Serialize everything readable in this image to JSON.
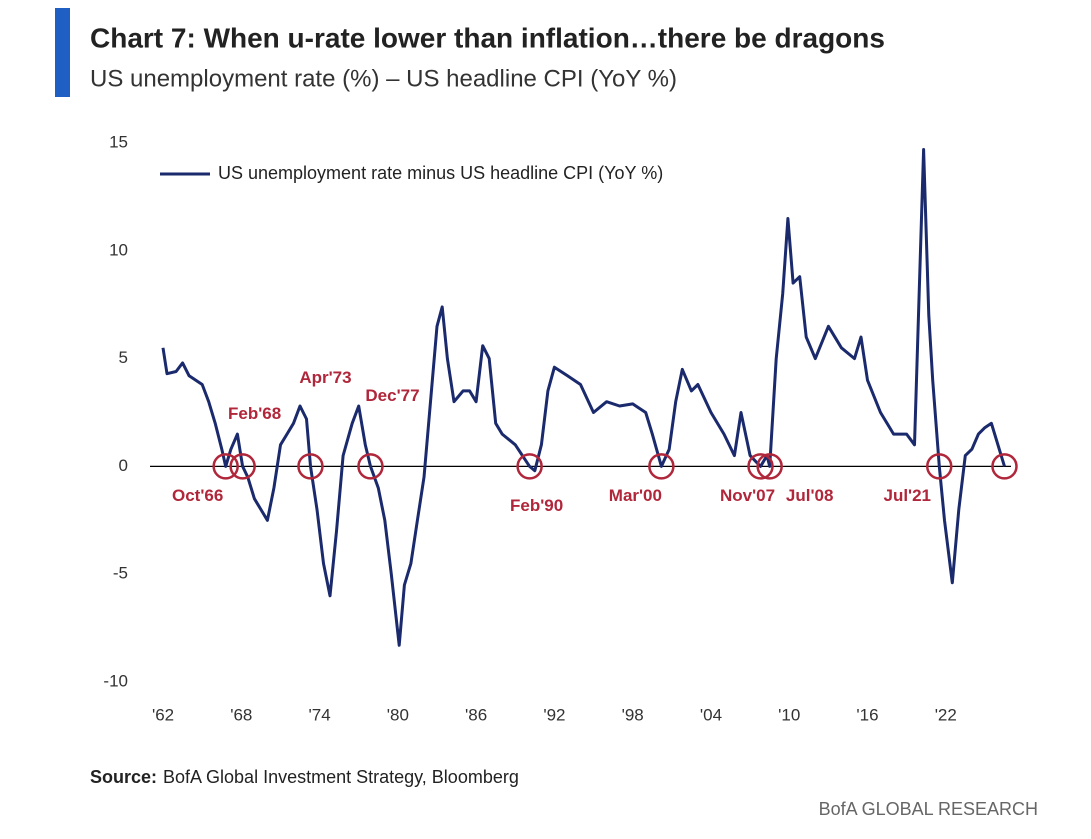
{
  "chart_data": {
    "type": "line",
    "title": "Chart 7: When u-rate lower than inflation…there be dragons",
    "subtitle": "US unemployment rate (%) – US headline CPI (YoY %)",
    "source_label": "Source:",
    "source": "BofA Global Investment Strategy, Bloomberg",
    "brand": "BofA GLOBAL RESEARCH",
    "xlim": [
      1961,
      2027
    ],
    "xticks": [
      {
        "value": 1962,
        "label": "'62"
      },
      {
        "value": 1968,
        "label": "'68"
      },
      {
        "value": 1974,
        "label": "'74"
      },
      {
        "value": 1980,
        "label": "'80"
      },
      {
        "value": 1986,
        "label": "'86"
      },
      {
        "value": 1992,
        "label": "'92"
      },
      {
        "value": 1998,
        "label": "'98"
      },
      {
        "value": 2004,
        "label": "'04"
      },
      {
        "value": 2010,
        "label": "'10"
      },
      {
        "value": 2016,
        "label": "'16"
      },
      {
        "value": 2022,
        "label": "'22"
      }
    ],
    "ylim": [
      -10,
      15
    ],
    "yticks": [
      -10,
      -5,
      0,
      5,
      10,
      15
    ],
    "zero_line": true,
    "legend": "top-left",
    "x": [
      1962.0,
      1962.3,
      1963,
      1963.5,
      1964,
      1965,
      1965.5,
      1966,
      1966.5,
      1966.8,
      1967.2,
      1967.7,
      1968.1,
      1968.5,
      1969,
      1969.5,
      1970,
      1970.5,
      1971,
      1971.5,
      1972,
      1972.5,
      1973,
      1973.3,
      1973.8,
      1974.3,
      1974.8,
      1975.3,
      1975.8,
      1976.5,
      1977,
      1977.5,
      1977.9,
      1978.5,
      1979,
      1979.5,
      1980.1,
      1980.5,
      1981,
      1981.5,
      1982,
      1982.5,
      1983,
      1983.4,
      1983.8,
      1984.3,
      1985,
      1985.5,
      1986,
      1986.5,
      1987,
      1987.5,
      1988,
      1989,
      1990.1,
      1990.5,
      1991,
      1991.5,
      1992,
      1993,
      1994,
      1995,
      1996,
      1997,
      1998,
      1999,
      1999.5,
      2000.2,
      2000.8,
      2001.3,
      2001.8,
      2002.5,
      2003,
      2004,
      2005,
      2005.8,
      2006.3,
      2007,
      2007.8,
      2008.3,
      2008.5,
      2009,
      2009.5,
      2009.9,
      2010.3,
      2010.8,
      2011.3,
      2012,
      2013,
      2014,
      2015,
      2015.5,
      2016,
      2017,
      2018,
      2019,
      2019.6,
      2020.3,
      2020.7,
      2021,
      2021.5,
      2021.9,
      2022.5,
      2023,
      2023.5,
      2024,
      2024.5,
      2025,
      2025.5,
      2026.5
    ],
    "series": [
      {
        "name": "US unemployment rate minus US headline CPI (YoY %)",
        "color": "#1a2a6c",
        "values": [
          5.5,
          4.3,
          4.4,
          4.8,
          4.2,
          3.8,
          3.0,
          2.0,
          0.8,
          0,
          0.8,
          1.5,
          0,
          -0.5,
          -1.5,
          -2.0,
          -2.5,
          -1.0,
          1.0,
          1.5,
          2.0,
          2.8,
          2.2,
          0,
          -2.0,
          -4.5,
          -6.0,
          -3.0,
          0.5,
          2.0,
          2.8,
          1.0,
          0,
          -1.0,
          -2.5,
          -5.0,
          -8.3,
          -5.5,
          -4.5,
          -2.5,
          -0.5,
          3.0,
          6.5,
          7.4,
          5.0,
          3.0,
          3.5,
          3.5,
          3.0,
          5.6,
          5.0,
          2.0,
          1.5,
          1.0,
          0,
          -0.2,
          1.0,
          3.5,
          4.6,
          4.2,
          3.8,
          2.5,
          3.0,
          2.8,
          2.9,
          2.5,
          1.5,
          0,
          0.8,
          3.0,
          4.5,
          3.5,
          3.8,
          2.5,
          1.5,
          0.5,
          2.5,
          0.5,
          0,
          0.5,
          0,
          5.0,
          8.0,
          11.5,
          8.5,
          8.8,
          6.0,
          5.0,
          6.5,
          5.5,
          5.0,
          6.0,
          4.0,
          2.5,
          1.5,
          1.5,
          1.0,
          14.7,
          7.0,
          4.0,
          0,
          -2.5,
          -5.4,
          -2.0,
          0.5,
          0.8,
          1.5,
          1.8,
          2.0,
          0
        ]
      }
    ],
    "annotations": [
      {
        "label": "Oct'66",
        "x": 1966.8,
        "y": 0
      },
      {
        "label": "Feb'68",
        "x": 1968.1,
        "y": 0
      },
      {
        "label": "Apr'73",
        "x": 1973.3,
        "y": 0
      },
      {
        "label": "Dec'77",
        "x": 1977.9,
        "y": 0
      },
      {
        "label": "Feb'90",
        "x": 1990.1,
        "y": 0
      },
      {
        "label": "Mar'00",
        "x": 2000.2,
        "y": 0
      },
      {
        "label": "Nov'07",
        "x": 2007.8,
        "y": 0
      },
      {
        "label": "Jul'08",
        "x": 2008.5,
        "y": 0
      },
      {
        "label": "Jul'21",
        "x": 2021.5,
        "y": 0
      },
      {
        "x": 2026.5,
        "y": 0
      }
    ]
  }
}
